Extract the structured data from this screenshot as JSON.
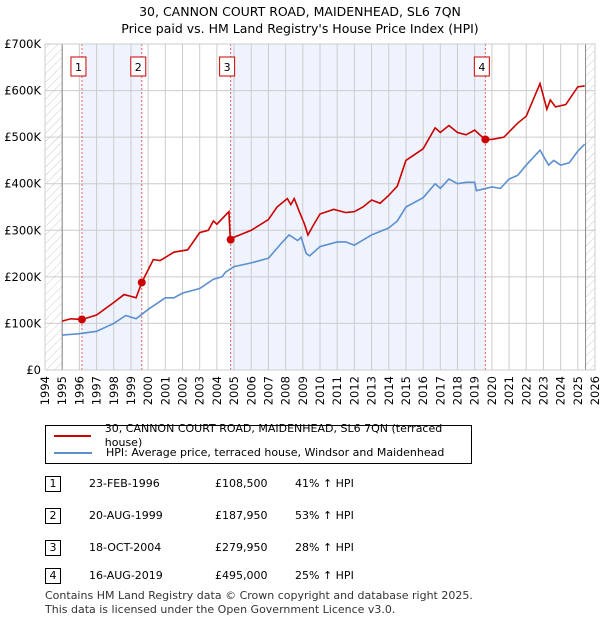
{
  "chart_data": {
    "type": "line",
    "title": "30, CANNON COURT ROAD, MAIDENHEAD, SL6 7QN",
    "subtitle": "Price paid vs. HM Land Registry's House Price Index (HPI)",
    "xlim": [
      1994,
      2026
    ],
    "ylim": [
      0,
      700000
    ],
    "x_ticks": [
      "1994",
      "1995",
      "1996",
      "1997",
      "1998",
      "1999",
      "2000",
      "2001",
      "2002",
      "2003",
      "2004",
      "2005",
      "2006",
      "2007",
      "2008",
      "2009",
      "2010",
      "2011",
      "2012",
      "2013",
      "2014",
      "2015",
      "2016",
      "2017",
      "2018",
      "2019",
      "2020",
      "2021",
      "2022",
      "2023",
      "2024",
      "2025",
      "2026"
    ],
    "y_ticks": [
      {
        "v": 0,
        "label": "£0"
      },
      {
        "v": 100000,
        "label": "£100K"
      },
      {
        "v": 200000,
        "label": "£200K"
      },
      {
        "v": 300000,
        "label": "£300K"
      },
      {
        "v": 400000,
        "label": "£400K"
      },
      {
        "v": 500000,
        "label": "£500K"
      },
      {
        "v": 600000,
        "label": "£600K"
      },
      {
        "v": 700000,
        "label": "£700K"
      }
    ],
    "colors": {
      "property": "#cc0000",
      "hpi": "#5b8fd0",
      "band": "#eef3fd"
    },
    "series": [
      {
        "name": "30, CANNON COURT ROAD, MAIDENHEAD, SL6 7QN (terraced house)",
        "points": [
          [
            1995,
            105
          ],
          [
            1995.5,
            110
          ],
          [
            1996.15,
            108.5
          ],
          [
            1997,
            118
          ],
          [
            1998,
            145
          ],
          [
            1998.6,
            162
          ],
          [
            1999.3,
            155
          ],
          [
            1999.63,
            188
          ],
          [
            2000.3,
            237
          ],
          [
            2000.7,
            235
          ],
          [
            2001.5,
            253
          ],
          [
            2002.3,
            258
          ],
          [
            2003,
            295
          ],
          [
            2003.5,
            300
          ],
          [
            2003.8,
            320
          ],
          [
            2004,
            313
          ],
          [
            2004.7,
            340
          ],
          [
            2004.78,
            280
          ],
          [
            2005,
            285
          ],
          [
            2006,
            300
          ],
          [
            2007,
            323
          ],
          [
            2007.5,
            350
          ],
          [
            2008.1,
            368
          ],
          [
            2008.3,
            355
          ],
          [
            2008.5,
            368
          ],
          [
            2008.8,
            340
          ],
          [
            2009.1,
            313
          ],
          [
            2009.3,
            290
          ],
          [
            2009.6,
            310
          ],
          [
            2010,
            335
          ],
          [
            2010.8,
            345
          ],
          [
            2011.5,
            338
          ],
          [
            2012,
            340
          ],
          [
            2012.5,
            350
          ],
          [
            2013,
            365
          ],
          [
            2013.5,
            358
          ],
          [
            2014,
            375
          ],
          [
            2014.5,
            395
          ],
          [
            2015,
            450
          ],
          [
            2016,
            475
          ],
          [
            2016.7,
            520
          ],
          [
            2017,
            510
          ],
          [
            2017.5,
            525
          ],
          [
            2018,
            510
          ],
          [
            2018.5,
            505
          ],
          [
            2019,
            515
          ],
          [
            2019.6,
            495
          ],
          [
            2020,
            495
          ],
          [
            2020.7,
            500
          ],
          [
            2021.5,
            530
          ],
          [
            2022,
            545
          ],
          [
            2022.8,
            615
          ],
          [
            2023.2,
            560
          ],
          [
            2023.4,
            580
          ],
          [
            2023.7,
            565
          ],
          [
            2024.3,
            570
          ],
          [
            2025,
            608
          ],
          [
            2025.4,
            610
          ]
        ]
      },
      {
        "name": "HPI: Average price, terraced house, Windsor and Maidenhead",
        "points": [
          [
            1995,
            75
          ],
          [
            1996,
            78
          ],
          [
            1997,
            83
          ],
          [
            1998,
            100
          ],
          [
            1998.7,
            117
          ],
          [
            1999.3,
            110
          ],
          [
            2000,
            130
          ],
          [
            2001,
            155
          ],
          [
            2001.5,
            155
          ],
          [
            2002,
            165
          ],
          [
            2003,
            175
          ],
          [
            2003.8,
            195
          ],
          [
            2004.3,
            200
          ],
          [
            2004.5,
            210
          ],
          [
            2005,
            222
          ],
          [
            2006,
            230
          ],
          [
            2007,
            240
          ],
          [
            2007.7,
            270
          ],
          [
            2008.2,
            290
          ],
          [
            2008.7,
            278
          ],
          [
            2008.9,
            285
          ],
          [
            2009.2,
            250
          ],
          [
            2009.4,
            245
          ],
          [
            2010,
            265
          ],
          [
            2011,
            275
          ],
          [
            2011.5,
            275
          ],
          [
            2012,
            268
          ],
          [
            2013,
            290
          ],
          [
            2014,
            305
          ],
          [
            2014.5,
            320
          ],
          [
            2015,
            350
          ],
          [
            2016,
            370
          ],
          [
            2016.7,
            400
          ],
          [
            2017,
            390
          ],
          [
            2017.5,
            410
          ],
          [
            2018,
            400
          ],
          [
            2018.5,
            403
          ],
          [
            2019,
            403
          ],
          [
            2019.1,
            385
          ],
          [
            2020,
            393
          ],
          [
            2020.5,
            390
          ],
          [
            2021,
            410
          ],
          [
            2021.5,
            418
          ],
          [
            2022,
            440
          ],
          [
            2022.8,
            472
          ],
          [
            2023.3,
            440
          ],
          [
            2023.6,
            450
          ],
          [
            2024,
            440
          ],
          [
            2024.5,
            445
          ],
          [
            2025,
            470
          ],
          [
            2025.4,
            485
          ]
        ]
      }
    ],
    "sales": [
      {
        "n": "1",
        "x": 1996.15,
        "y": 108.5,
        "date": "23-FEB-1996",
        "price": "£108,500",
        "hpi": "41% ↑ HPI"
      },
      {
        "n": "2",
        "x": 1999.63,
        "y": 187.95,
        "date": "20-AUG-1999",
        "price": "£187,950",
        "hpi": "53% ↑ HPI"
      },
      {
        "n": "3",
        "x": 2004.8,
        "y": 279.95,
        "date": "18-OCT-2004",
        "price": "£279,950",
        "hpi": "28% ↑ HPI"
      },
      {
        "n": "4",
        "x": 2019.62,
        "y": 495,
        "date": "16-AUG-2019",
        "price": "£495,000",
        "hpi": "25% ↑ HPI"
      }
    ]
  },
  "legend": {
    "property": "30, CANNON COURT ROAD, MAIDENHEAD, SL6 7QN (terraced house)",
    "hpi": "HPI: Average price, terraced house, Windsor and Maidenhead"
  },
  "footer": {
    "line1": "Contains HM Land Registry data © Crown copyright and database right 2025.",
    "line2": "This data is licensed under the Open Government Licence v3.0."
  }
}
